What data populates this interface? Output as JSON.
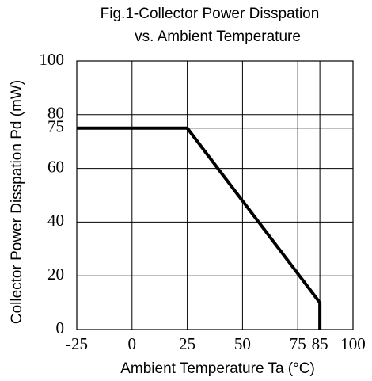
{
  "chart_data": {
    "type": "line",
    "title": [
      "Fig.1-Collector Power Disspation",
      "vs. Ambient Temperature"
    ],
    "x_label": "Ambient Temperature Ta (°C)",
    "y_label": "Collector Power Disspation Pd (mW)",
    "x": [
      -25,
      25,
      85,
      85
    ],
    "series": [
      {
        "color": "#000000",
        "values": [
          75,
          75,
          10,
          0
        ]
      }
    ],
    "xlim": [
      -25,
      100
    ],
    "xticks": [
      -25,
      0,
      25,
      50,
      75,
      85,
      100
    ],
    "ylim": [
      0,
      100
    ],
    "yticks": [
      0,
      20,
      40,
      60,
      75,
      80,
      100
    ],
    "grid": true
  }
}
